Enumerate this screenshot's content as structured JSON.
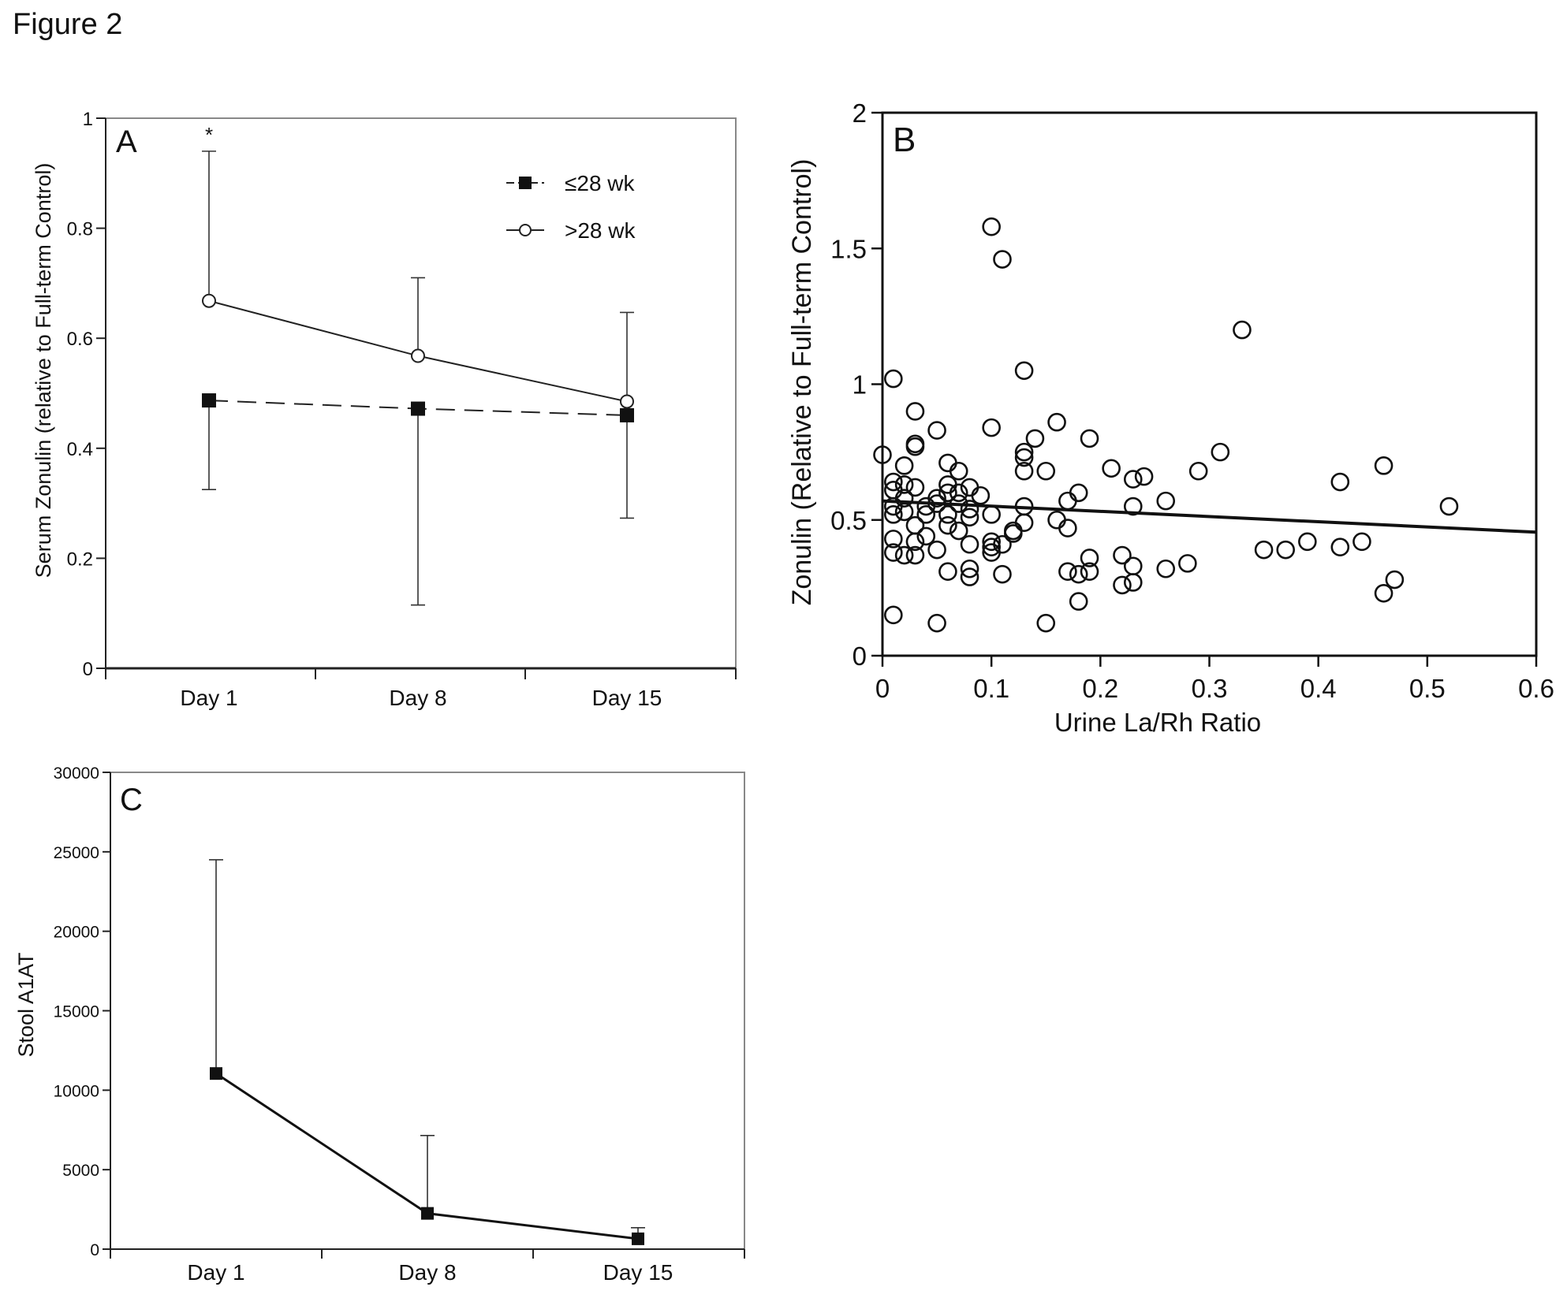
{
  "figure": {
    "title": "Figure 2"
  },
  "chart_data": [
    {
      "panel": "A",
      "type": "line",
      "ylabel": "Serum Zonulin (relative to Full-term Control)",
      "xlabel": "",
      "categories": [
        "Day 1",
        "Day 8",
        "Day 15"
      ],
      "ylim": [
        0,
        1
      ],
      "yticks": [
        0,
        0.2,
        0.4,
        0.6,
        0.8,
        1
      ],
      "ytick_labels": [
        "0",
        "0.2",
        "0.4",
        "0.6",
        "0.8",
        "1"
      ],
      "legend_position": "top-right",
      "annotation": "*",
      "series": [
        {
          "name": "≤28 wk",
          "marker": "filled-square",
          "line": "dashed",
          "values": [
            0.487,
            0.472,
            0.46
          ],
          "err_high": [
            0.487,
            0.472,
            0.46
          ],
          "err_low": [
            0.325,
            0.115,
            0.273
          ]
        },
        {
          "name": ">28 wk",
          "marker": "open-circle",
          "line": "solid",
          "values": [
            0.668,
            0.568,
            0.485
          ],
          "err_high": [
            0.94,
            0.71,
            0.647
          ],
          "err_low": [
            0.668,
            0.568,
            0.485
          ]
        }
      ]
    },
    {
      "panel": "B",
      "type": "scatter",
      "xlabel": "Urine La/Rh Ratio",
      "ylabel": "Zonulin (Relative to Full-term Control)",
      "xlim": [
        0,
        0.6
      ],
      "ylim": [
        0,
        2
      ],
      "xticks": [
        0,
        0.1,
        0.2,
        0.3,
        0.4,
        0.5,
        0.6
      ],
      "xtick_labels": [
        "0",
        "0.1",
        "0.2",
        "0.3",
        "0.4",
        "0.5",
        "0.6"
      ],
      "yticks": [
        0,
        0.5,
        1,
        1.5,
        2
      ],
      "ytick_labels": [
        "0",
        "0.5",
        "1",
        "1.5",
        "2"
      ],
      "trendline": {
        "x": [
          0,
          0.6
        ],
        "y": [
          0.57,
          0.455
        ]
      },
      "points": [
        [
          0.1,
          1.58
        ],
        [
          0.11,
          1.46
        ],
        [
          0.33,
          1.2
        ],
        [
          0.13,
          1.05
        ],
        [
          0.01,
          1.02
        ],
        [
          0.03,
          0.9
        ],
        [
          0.1,
          0.84
        ],
        [
          0.05,
          0.83
        ],
        [
          0.16,
          0.86
        ],
        [
          0.19,
          0.8
        ],
        [
          0.14,
          0.8
        ],
        [
          0.03,
          0.77
        ],
        [
          0.03,
          0.78
        ],
        [
          0.0,
          0.74
        ],
        [
          0.13,
          0.75
        ],
        [
          0.13,
          0.73
        ],
        [
          0.31,
          0.75
        ],
        [
          0.06,
          0.71
        ],
        [
          0.46,
          0.7
        ],
        [
          0.21,
          0.69
        ],
        [
          0.29,
          0.68
        ],
        [
          0.15,
          0.68
        ],
        [
          0.07,
          0.68
        ],
        [
          0.13,
          0.68
        ],
        [
          0.02,
          0.7
        ],
        [
          0.24,
          0.66
        ],
        [
          0.23,
          0.65
        ],
        [
          0.01,
          0.64
        ],
        [
          0.42,
          0.64
        ],
        [
          0.02,
          0.63
        ],
        [
          0.06,
          0.63
        ],
        [
          0.08,
          0.62
        ],
        [
          0.01,
          0.61
        ],
        [
          0.03,
          0.62
        ],
        [
          0.06,
          0.6
        ],
        [
          0.07,
          0.6
        ],
        [
          0.18,
          0.6
        ],
        [
          0.09,
          0.59
        ],
        [
          0.02,
          0.58
        ],
        [
          0.05,
          0.58
        ],
        [
          0.26,
          0.57
        ],
        [
          0.17,
          0.57
        ],
        [
          0.05,
          0.56
        ],
        [
          0.07,
          0.56
        ],
        [
          0.04,
          0.55
        ],
        [
          0.01,
          0.55
        ],
        [
          0.08,
          0.54
        ],
        [
          0.13,
          0.55
        ],
        [
          0.23,
          0.55
        ],
        [
          0.52,
          0.55
        ],
        [
          0.02,
          0.53
        ],
        [
          0.1,
          0.52
        ],
        [
          0.04,
          0.52
        ],
        [
          0.06,
          0.52
        ],
        [
          0.01,
          0.52
        ],
        [
          0.08,
          0.51
        ],
        [
          0.16,
          0.5
        ],
        [
          0.13,
          0.49
        ],
        [
          0.03,
          0.48
        ],
        [
          0.06,
          0.48
        ],
        [
          0.17,
          0.47
        ],
        [
          0.07,
          0.46
        ],
        [
          0.12,
          0.46
        ],
        [
          0.12,
          0.45
        ],
        [
          0.04,
          0.44
        ],
        [
          0.01,
          0.43
        ],
        [
          0.03,
          0.42
        ],
        [
          0.1,
          0.42
        ],
        [
          0.39,
          0.42
        ],
        [
          0.44,
          0.42
        ],
        [
          0.11,
          0.41
        ],
        [
          0.08,
          0.41
        ],
        [
          0.1,
          0.4
        ],
        [
          0.42,
          0.4
        ],
        [
          0.37,
          0.39
        ],
        [
          0.35,
          0.39
        ],
        [
          0.05,
          0.39
        ],
        [
          0.1,
          0.38
        ],
        [
          0.01,
          0.38
        ],
        [
          0.02,
          0.37
        ],
        [
          0.03,
          0.37
        ],
        [
          0.19,
          0.36
        ],
        [
          0.22,
          0.37
        ],
        [
          0.28,
          0.34
        ],
        [
          0.23,
          0.33
        ],
        [
          0.26,
          0.32
        ],
        [
          0.08,
          0.32
        ],
        [
          0.06,
          0.31
        ],
        [
          0.17,
          0.31
        ],
        [
          0.19,
          0.31
        ],
        [
          0.18,
          0.3
        ],
        [
          0.11,
          0.3
        ],
        [
          0.08,
          0.29
        ],
        [
          0.47,
          0.28
        ],
        [
          0.23,
          0.27
        ],
        [
          0.22,
          0.26
        ],
        [
          0.46,
          0.23
        ],
        [
          0.18,
          0.2
        ],
        [
          0.01,
          0.15
        ],
        [
          0.05,
          0.12
        ],
        [
          0.15,
          0.12
        ]
      ]
    },
    {
      "panel": "C",
      "type": "line",
      "ylabel": "Stool A1AT",
      "xlabel": "",
      "categories": [
        "Day 1",
        "Day 8",
        "Day 15"
      ],
      "ylim": [
        0,
        30000
      ],
      "yticks": [
        0,
        5000,
        10000,
        15000,
        20000,
        25000,
        30000
      ],
      "ytick_labels": [
        "0",
        "5000",
        "10000",
        "15000",
        "20000",
        "25000",
        "30000"
      ],
      "series": [
        {
          "name": "",
          "marker": "filled-square",
          "line": "solid",
          "values": [
            11050,
            2250,
            650
          ],
          "err_high": [
            24500,
            7150,
            1350
          ]
        }
      ]
    }
  ]
}
